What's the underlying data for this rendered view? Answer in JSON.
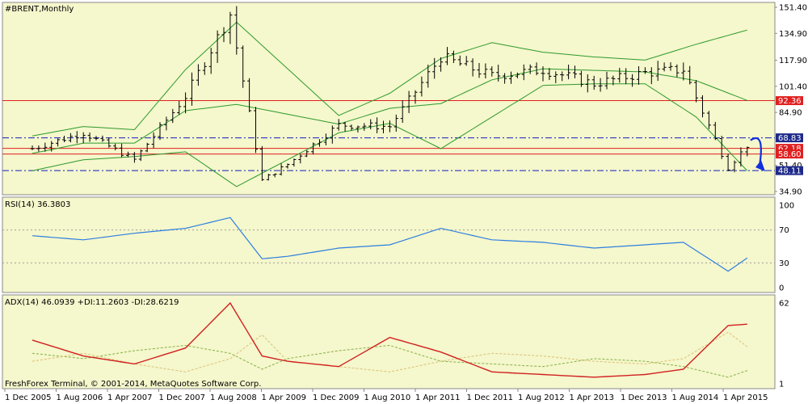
{
  "colors": {
    "background": "#F5F7CC",
    "frame": "#8A8A8A",
    "price_bar": "#000000",
    "bollinger": "#2E9A2E",
    "red_line": "#E02020",
    "dash_line": "#1020C0",
    "rsi_line": "#2D7FE0",
    "adx_line": "#D02020",
    "di_plus": "#86B04A",
    "di_minus": "#D9C27A",
    "arrow": "#1030E0"
  },
  "main_panel": {
    "title": "#BRENT,Monthly",
    "ylim": [
      34.9,
      151.4
    ],
    "y_ticks": [
      "151.40",
      "134.90",
      "117.90",
      "101.40",
      "84.90",
      "51.40",
      "34.90"
    ],
    "levels": [
      {
        "name": "resistance-92-36",
        "value": 92.36,
        "label": "92.36",
        "color": "#E02020",
        "style": "solid",
        "label_bg": "#E02020"
      },
      {
        "name": "level-68-83",
        "value": 68.83,
        "label": "68.83",
        "color": "#1020C0",
        "style": "dashdot",
        "label_bg": "#1E2A8A"
      },
      {
        "name": "level-62-18",
        "value": 62.18,
        "label": "62.18",
        "color": "#E02020",
        "style": "solid",
        "label_bg": "#E02020"
      },
      {
        "name": "level-58-60",
        "value": 58.6,
        "label": "58.60",
        "color": "#E02020",
        "style": "solid",
        "label_bg": "#E02020"
      },
      {
        "name": "level-48-11",
        "value": 48.11,
        "label": "48.11",
        "color": "#1020C0",
        "style": "dashdot",
        "label_bg": "#1E2A8A"
      }
    ]
  },
  "rsi_panel": {
    "title": "RSI(14) 36.3803",
    "ylim": [
      0,
      100
    ],
    "y_ticks": [
      "100",
      "70",
      "30",
      "0"
    ],
    "levels": [
      70,
      30
    ]
  },
  "adx_panel": {
    "title": "ADX(14) 46.0939 +DI:11.2603 -DI:28.6219",
    "y_ticks": [
      "62",
      "1"
    ],
    "ylim": [
      1,
      62
    ]
  },
  "x_labels": [
    "1 Dec 2005",
    "1 Aug 2006",
    "1 Apr 2007",
    "1 Dec 2007",
    "1 Aug 2008",
    "1 Apr 2009",
    "1 Dec 2009",
    "1 Aug 2010",
    "1 Apr 2011",
    "1 Dec 2011",
    "1 Aug 2012",
    "1 Apr 2013",
    "1 Dec 2013",
    "1 Aug 2014",
    "1 Apr 2015"
  ],
  "copyright": "FreshForex Terminal, © 2001-2014, MetaQuotes Software Corp.",
  "chart_data": {
    "type": "bar",
    "price_keys": [
      "Dec 2005",
      "Aug 2006",
      "Apr 2007",
      "Dec 2007",
      "Jul 2008",
      "Dec 2008",
      "Apr 2009",
      "Dec 2009",
      "Aug 2010",
      "Apr 2011",
      "Dec 2011",
      "Aug 2012",
      "Apr 2013",
      "Dec 2013",
      "Jun 2014",
      "Jan 2015",
      "Apr 2015"
    ],
    "price_values": [
      62,
      72,
      55,
      95,
      147,
      42,
      52,
      77,
      76,
      120,
      108,
      112,
      103,
      110,
      112,
      50,
      64
    ],
    "bollinger_upper_keys": [
      "Dec 2005",
      "Aug 2006",
      "Apr 2007",
      "Dec 2007",
      "Aug 2008",
      "Dec 2009",
      "Aug 2010",
      "Apr 2011",
      "Dec 2011",
      "Aug 2012",
      "Apr 2013",
      "Dec 2013",
      "Aug 2014",
      "Apr 2015"
    ],
    "bollinger_upper_values": [
      70,
      76,
      74,
      112,
      142,
      83,
      97,
      119,
      129,
      123,
      120,
      118,
      128,
      137
    ],
    "bollinger_lower_keys": [
      "Dec 2005",
      "Aug 2006",
      "Apr 2007",
      "Dec 2007",
      "Aug 2008",
      "Dec 2009",
      "Aug 2010",
      "Apr 2011",
      "Dec 2011",
      "Aug 2012",
      "Apr 2013",
      "Dec 2013",
      "Aug 2014",
      "Apr 2015"
    ],
    "bollinger_lower_values": [
      48,
      55,
      57,
      60,
      38,
      72,
      78,
      62,
      82,
      102,
      103,
      103,
      82,
      48
    ],
    "rsi_values": [
      63,
      58,
      66,
      72,
      85,
      35,
      38,
      48,
      52,
      72,
      58,
      55,
      48,
      52,
      55,
      20,
      36
    ],
    "adx_values": [
      34,
      22,
      16,
      28,
      62,
      22,
      18,
      14,
      36,
      25,
      10,
      8,
      6,
      8,
      12,
      45,
      46
    ],
    "di_plus_values": [
      24,
      20,
      26,
      30,
      24,
      12,
      20,
      26,
      30,
      18,
      16,
      14,
      20,
      18,
      14,
      6,
      11
    ],
    "di_minus_values": [
      18,
      24,
      16,
      10,
      20,
      38,
      18,
      14,
      10,
      18,
      24,
      22,
      18,
      16,
      20,
      40,
      29
    ],
    "forecast_arrow": {
      "from": 68.83,
      "to": 48.11
    }
  }
}
